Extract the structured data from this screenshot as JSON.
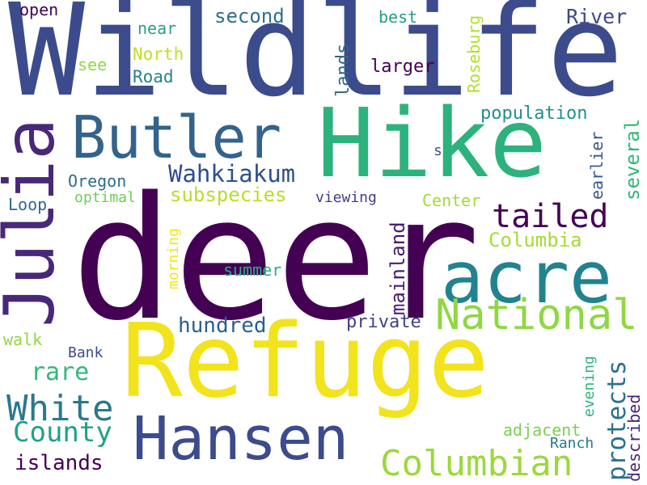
{
  "word_cloud": {
    "words": [
      {
        "text": "deer",
        "color": "#440154",
        "orientation": "horizontal"
      },
      {
        "text": "Wildlife",
        "color": "#3b4b8c",
        "orientation": "horizontal"
      },
      {
        "text": "Refuge",
        "color": "#f2e31c",
        "orientation": "horizontal"
      },
      {
        "text": "Hike",
        "color": "#2db27d",
        "orientation": "horizontal"
      },
      {
        "text": "Julia",
        "color": "#482878",
        "orientation": "vertical"
      },
      {
        "text": "Butler",
        "color": "#33638d",
        "orientation": "horizontal"
      },
      {
        "text": "acre",
        "color": "#21838e",
        "orientation": "horizontal"
      },
      {
        "text": "Hansen",
        "color": "#3b4b8c",
        "orientation": "horizontal"
      },
      {
        "text": "National",
        "color": "#8fd744",
        "orientation": "horizontal"
      },
      {
        "text": "Columbian",
        "color": "#9cd83c",
        "orientation": "horizontal"
      },
      {
        "text": "tailed",
        "color": "#440154",
        "orientation": "horizontal"
      },
      {
        "text": "White",
        "color": "#2a788e",
        "orientation": "horizontal"
      },
      {
        "text": "County",
        "color": "#1fa187",
        "orientation": "horizontal"
      },
      {
        "text": "Wahkiakum",
        "color": "#2d4f8e",
        "orientation": "horizontal"
      },
      {
        "text": "subspecies",
        "color": "#b8de29",
        "orientation": "horizontal"
      },
      {
        "text": "Columbia",
        "color": "#a5db36",
        "orientation": "horizontal"
      },
      {
        "text": "protects",
        "color": "#2c718e",
        "orientation": "vertical"
      },
      {
        "text": "rare",
        "color": "#35b779",
        "orientation": "horizontal"
      },
      {
        "text": "hundred",
        "color": "#27628e",
        "orientation": "horizontal"
      },
      {
        "text": "islands",
        "color": "#440154",
        "orientation": "horizontal"
      },
      {
        "text": "River",
        "color": "#3f4889",
        "orientation": "horizontal"
      },
      {
        "text": "several",
        "color": "#33b67a",
        "orientation": "vertical"
      },
      {
        "text": "mainland",
        "color": "#481c6e",
        "orientation": "vertical"
      },
      {
        "text": "second",
        "color": "#2d708e",
        "orientation": "horizontal"
      },
      {
        "text": "population",
        "color": "#21908d",
        "orientation": "horizontal"
      },
      {
        "text": "private",
        "color": "#424186",
        "orientation": "horizontal"
      },
      {
        "text": "lands",
        "color": "#32658e",
        "orientation": "vertical"
      },
      {
        "text": "Oregon",
        "color": "#2e6d8e",
        "orientation": "horizontal"
      },
      {
        "text": "adjacent",
        "color": "#7ad151",
        "orientation": "horizontal"
      },
      {
        "text": "described",
        "color": "#482677",
        "orientation": "vertical"
      },
      {
        "text": "larger",
        "color": "#440154",
        "orientation": "horizontal"
      },
      {
        "text": "Roseburg",
        "color": "#b5de2b",
        "orientation": "vertical"
      },
      {
        "text": "North",
        "color": "#c2df23",
        "orientation": "horizontal"
      },
      {
        "text": "Road",
        "color": "#25838e",
        "orientation": "horizontal"
      },
      {
        "text": "near",
        "color": "#2a9d8e",
        "orientation": "horizontal"
      },
      {
        "text": "best",
        "color": "#1fa187",
        "orientation": "horizontal"
      },
      {
        "text": "open",
        "color": "#440154",
        "orientation": "horizontal"
      },
      {
        "text": "see",
        "color": "#8fd744",
        "orientation": "horizontal"
      },
      {
        "text": "Loop",
        "color": "#31688e",
        "orientation": "horizontal"
      },
      {
        "text": "optimal",
        "color": "#6ece58",
        "orientation": "horizontal"
      },
      {
        "text": "viewing",
        "color": "#433e85",
        "orientation": "horizontal"
      },
      {
        "text": "Center",
        "color": "#a0da39",
        "orientation": "horizontal"
      },
      {
        "text": "earlier",
        "color": "#38598c",
        "orientation": "vertical"
      },
      {
        "text": "s",
        "color": "#3b528b",
        "orientation": "horizontal"
      },
      {
        "text": "morning",
        "color": "#f1e51d",
        "orientation": "vertical"
      },
      {
        "text": "summer",
        "color": "#29af7f",
        "orientation": "horizontal"
      },
      {
        "text": "walk",
        "color": "#8fd744",
        "orientation": "horizontal"
      },
      {
        "text": "Bank",
        "color": "#3e4c8a",
        "orientation": "horizontal"
      },
      {
        "text": "evening",
        "color": "#2db27d",
        "orientation": "vertical"
      },
      {
        "text": "Ranch",
        "color": "#2a788e",
        "orientation": "horizontal"
      }
    ]
  }
}
